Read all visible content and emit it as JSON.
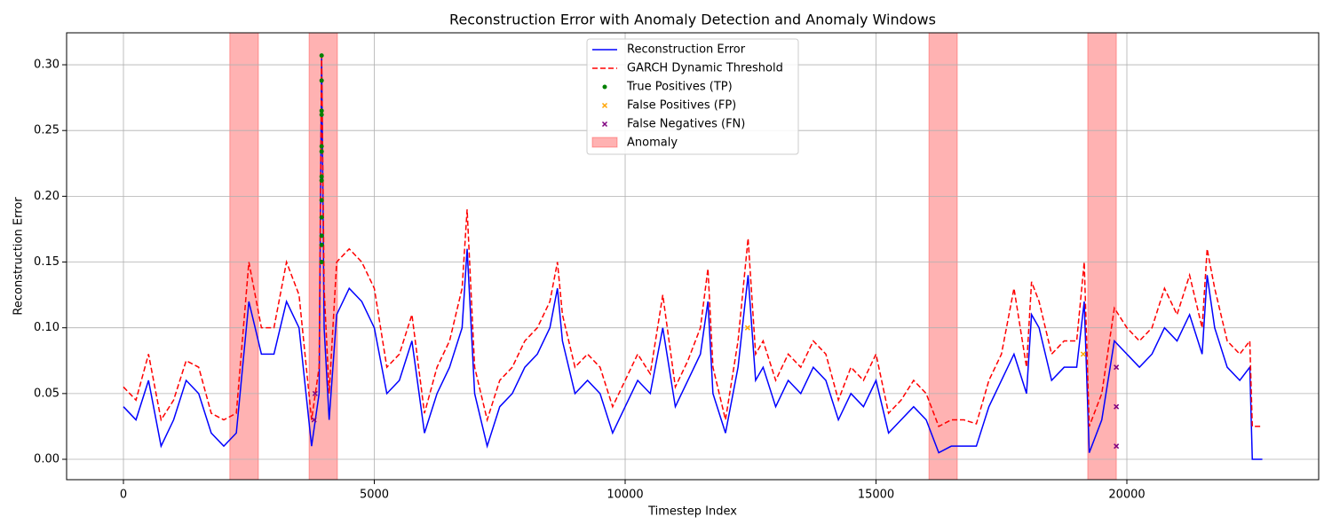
{
  "chart_data": {
    "type": "line",
    "title": "Reconstruction Error with Anomaly Detection and Anomaly Windows",
    "x_label": "Timestep Index",
    "y_label": "Reconstruction Error",
    "xlim": [
      -1133,
      23823
    ],
    "ylim": [
      -0.0155,
      0.3243
    ],
    "xticks": [
      0,
      5000,
      10000,
      15000,
      20000
    ],
    "yticks": [
      {
        "value": 0,
        "label": "0.00"
      },
      {
        "value": 0.05,
        "label": "0.05"
      },
      {
        "value": 0.1,
        "label": "0.10"
      },
      {
        "value": 0.15,
        "label": "0.15"
      },
      {
        "value": 0.2,
        "label": "0.20"
      },
      {
        "value": 0.25,
        "label": "0.25"
      },
      {
        "value": 0.3,
        "label": "0.30"
      }
    ],
    "grid": true,
    "legend": "upper center",
    "x": [
      0,
      250,
      500,
      750,
      1000,
      1250,
      1500,
      1750,
      2000,
      2250,
      2500,
      2750,
      3000,
      3250,
      3500,
      3750,
      3900,
      3950,
      4000,
      4100,
      4250,
      4500,
      4750,
      5000,
      5250,
      5500,
      5750,
      6000,
      6250,
      6500,
      6750,
      6850,
      7000,
      7250,
      7500,
      7750,
      8000,
      8250,
      8500,
      8650,
      8750,
      9000,
      9250,
      9500,
      9750,
      10000,
      10250,
      10500,
      10750,
      11000,
      11250,
      11500,
      11650,
      11750,
      12000,
      12250,
      12450,
      12600,
      12750,
      13000,
      13250,
      13500,
      13750,
      14000,
      14250,
      14500,
      14750,
      15000,
      15250,
      15500,
      15750,
      16000,
      16250,
      16500,
      16750,
      17000,
      17250,
      17500,
      17750,
      18000,
      18100,
      18250,
      18500,
      18750,
      19000,
      19150,
      19250,
      19500,
      19750,
      20000,
      20250,
      20500,
      20750,
      21000,
      21250,
      21500,
      21600,
      21750,
      22000,
      22250,
      22450,
      22500,
      22700
    ],
    "series": [
      {
        "name": "Reconstruction Error",
        "color": "#0000ff",
        "style": "solid",
        "values": [
          0.04,
          0.03,
          0.06,
          0.01,
          0.03,
          0.06,
          0.05,
          0.02,
          0.01,
          0.02,
          0.12,
          0.08,
          0.08,
          0.12,
          0.1,
          0.01,
          0.05,
          0.307,
          0.1,
          0.03,
          0.11,
          0.13,
          0.12,
          0.1,
          0.05,
          0.06,
          0.09,
          0.02,
          0.05,
          0.07,
          0.1,
          0.16,
          0.05,
          0.01,
          0.04,
          0.05,
          0.07,
          0.08,
          0.1,
          0.13,
          0.09,
          0.05,
          0.06,
          0.05,
          0.02,
          0.04,
          0.06,
          0.05,
          0.1,
          0.04,
          0.06,
          0.08,
          0.12,
          0.05,
          0.02,
          0.07,
          0.14,
          0.06,
          0.07,
          0.04,
          0.06,
          0.05,
          0.07,
          0.06,
          0.03,
          0.05,
          0.04,
          0.06,
          0.02,
          0.03,
          0.04,
          0.03,
          0.005,
          0.01,
          0.01,
          0.01,
          0.04,
          0.06,
          0.08,
          0.05,
          0.11,
          0.1,
          0.06,
          0.07,
          0.07,
          0.12,
          0.005,
          0.03,
          0.09,
          0.08,
          0.07,
          0.08,
          0.1,
          0.09,
          0.11,
          0.08,
          0.14,
          0.1,
          0.07,
          0.06,
          0.07,
          0,
          0
        ]
      },
      {
        "name": "GARCH Dynamic Threshold",
        "color": "#ff0000",
        "style": "dashed",
        "values": [
          0.055,
          0.045,
          0.08,
          0.03,
          0.045,
          0.075,
          0.07,
          0.035,
          0.03,
          0.035,
          0.15,
          0.1,
          0.1,
          0.15,
          0.125,
          0.03,
          0.07,
          0.307,
          0.13,
          0.05,
          0.15,
          0.16,
          0.15,
          0.13,
          0.07,
          0.08,
          0.11,
          0.035,
          0.07,
          0.09,
          0.13,
          0.19,
          0.07,
          0.03,
          0.06,
          0.07,
          0.09,
          0.1,
          0.12,
          0.15,
          0.11,
          0.07,
          0.08,
          0.07,
          0.04,
          0.06,
          0.08,
          0.065,
          0.125,
          0.055,
          0.075,
          0.1,
          0.145,
          0.07,
          0.03,
          0.09,
          0.168,
          0.08,
          0.09,
          0.06,
          0.08,
          0.07,
          0.09,
          0.08,
          0.045,
          0.07,
          0.06,
          0.08,
          0.035,
          0.045,
          0.06,
          0.05,
          0.025,
          0.03,
          0.03,
          0.027,
          0.06,
          0.08,
          0.13,
          0.07,
          0.135,
          0.12,
          0.08,
          0.09,
          0.09,
          0.15,
          0.025,
          0.05,
          0.115,
          0.1,
          0.09,
          0.1,
          0.13,
          0.11,
          0.14,
          0.1,
          0.16,
          0.13,
          0.09,
          0.08,
          0.09,
          0.025,
          0.025
        ]
      }
    ],
    "points": [
      {
        "name": "True Positives (TP)",
        "color": "#008000",
        "marker": "circle",
        "x": [
          3950,
          3950,
          3950,
          3950,
          3950,
          3950,
          3950,
          3950,
          3950,
          3950,
          3950,
          3950,
          3950
        ],
        "y": [
          0.307,
          0.288,
          0.265,
          0.262,
          0.238,
          0.234,
          0.215,
          0.212,
          0.197,
          0.184,
          0.17,
          0.163,
          0.15
        ]
      },
      {
        "name": "False Positives (FP)",
        "color": "#ffa500",
        "marker": "x",
        "x": [
          19130,
          12440
        ],
        "y": [
          0.08,
          0.1
        ]
      },
      {
        "name": "False Negatives (FN)",
        "color": "#800080",
        "marker": "x",
        "x": [
          3800,
          3820,
          19790,
          19790,
          19790
        ],
        "y": [
          0.03,
          0.05,
          0.01,
          0.04,
          0.07
        ]
      }
    ],
    "anomaly": {
      "name": "Anomaly",
      "color": "#ff0000",
      "ranges": [
        [
          2120,
          2690
        ],
        [
          3700,
          4265
        ],
        [
          16055,
          16620
        ],
        [
          19220,
          19790
        ]
      ]
    }
  }
}
